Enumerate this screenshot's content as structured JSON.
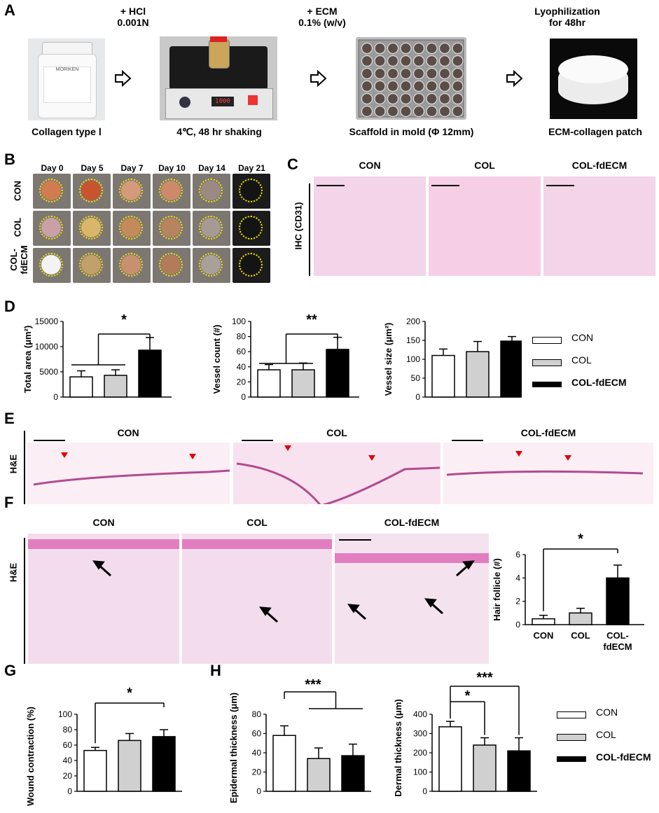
{
  "panels": {
    "A": {
      "letter": "A",
      "steps": [
        {
          "top": "",
          "caption": "Collagen type Ⅰ"
        },
        {
          "top": "+ HCl\n0.001N",
          "caption": "4℃, 48 hr shaking"
        },
        {
          "top": "+ ECM\n0.1% (w/v)",
          "caption": "Scaffold in mold (Φ 12mm)"
        },
        {
          "top": "Lyophilization\nfor 48hr",
          "caption": "ECM-collagen patch"
        }
      ],
      "step_tops": [
        "+ HCl",
        "0.001N",
        "+ ECM",
        "0.1% (w/v)",
        "Lyophilization",
        "for 48hr"
      ],
      "bottle_label": "MORIKEN",
      "stirrer_display": "1000"
    },
    "B": {
      "letter": "B",
      "days": [
        "Day 0",
        "Day 5",
        "Day 7",
        "Day 10",
        "Day 14",
        "Day 21"
      ],
      "rows": [
        "CON",
        "COL",
        "COL-\nfdECM"
      ],
      "row_con": "CON",
      "row_col": "COL",
      "row_fd1": "COL-",
      "row_fd2": "fdECM"
    },
    "C": {
      "letter": "C",
      "side_label": "IHC (CD31)",
      "columns": [
        "CON",
        "COL",
        "COL-fdECM"
      ]
    },
    "D": {
      "letter": "D"
    },
    "E": {
      "letter": "E",
      "side_label": "H&E",
      "columns": [
        "CON",
        "COL",
        "COL-fdECM"
      ]
    },
    "F": {
      "letter": "F",
      "side_label": "H&E",
      "columns": [
        "CON",
        "COL",
        "COL-fdECM"
      ]
    },
    "G": {
      "letter": "G"
    },
    "H": {
      "letter": "H"
    }
  },
  "legend": {
    "items": [
      "CON",
      "COL",
      "COL-fdECM"
    ],
    "colors": [
      "#ffffff",
      "#d0d0d0",
      "#000000"
    ]
  },
  "chart_data": [
    {
      "id": "D-total-area",
      "type": "bar",
      "categories": [
        "CON",
        "COL",
        "COL-fdECM"
      ],
      "values": [
        4000,
        4300,
        9300
      ],
      "errors": [
        1200,
        1100,
        2500
      ],
      "ylabel": "Total area (μm²)",
      "ylim": [
        0,
        15000
      ],
      "yticks": [
        "0",
        "5000",
        "10000",
        "15000"
      ],
      "significance": "*",
      "colors": [
        "#ffffff",
        "#d0d0d0",
        "#000000"
      ]
    },
    {
      "id": "D-vessel-count",
      "type": "bar",
      "categories": [
        "CON",
        "COL",
        "COL-fdECM"
      ],
      "values": [
        36,
        36,
        63
      ],
      "errors": [
        7,
        9,
        16
      ],
      "ylabel": "Vessel count (#)",
      "ylim": [
        0,
        100
      ],
      "yticks": [
        "0",
        "20",
        "40",
        "60",
        "80",
        "100"
      ],
      "significance": "**",
      "colors": [
        "#ffffff",
        "#d0d0d0",
        "#000000"
      ]
    },
    {
      "id": "D-vessel-size",
      "type": "bar",
      "categories": [
        "CON",
        "COL",
        "COL-fdECM"
      ],
      "values": [
        110,
        120,
        148
      ],
      "errors": [
        17,
        27,
        12
      ],
      "ylabel": "Vessel size (μm²)",
      "ylim": [
        0,
        200
      ],
      "yticks": [
        "0",
        "50",
        "100",
        "150",
        "200"
      ],
      "significance": "",
      "colors": [
        "#ffffff",
        "#d0d0d0",
        "#000000"
      ]
    },
    {
      "id": "F-hair-follicle",
      "type": "bar",
      "categories": [
        "CON",
        "COL",
        "COL-\nfdECM"
      ],
      "xticks": [
        "CON",
        "COL",
        "COL-",
        "fdECM"
      ],
      "values": [
        0.5,
        1.0,
        4.0
      ],
      "errors": [
        0.3,
        0.4,
        1.1
      ],
      "ylabel": "Hair follicle (#)",
      "ylim": [
        0,
        6
      ],
      "yticks": [
        "0",
        "2",
        "4",
        "6"
      ],
      "significance": "*",
      "colors": [
        "#ffffff",
        "#d0d0d0",
        "#000000"
      ]
    },
    {
      "id": "G-wound-contraction",
      "type": "bar",
      "categories": [
        "CON",
        "COL",
        "COL-fdECM"
      ],
      "values": [
        53,
        66,
        71
      ],
      "errors": [
        4,
        9,
        9
      ],
      "ylabel": "Wound contraction (%)",
      "ylim": [
        0,
        100
      ],
      "yticks": [
        "0",
        "20",
        "40",
        "60",
        "80",
        "100"
      ],
      "significance": "*",
      "colors": [
        "#ffffff",
        "#d0d0d0",
        "#000000"
      ]
    },
    {
      "id": "H-epidermal",
      "type": "bar",
      "categories": [
        "CON",
        "COL",
        "COL-fdECM"
      ],
      "values": [
        58,
        34,
        37
      ],
      "errors": [
        10,
        11,
        12
      ],
      "ylabel": "Epidermal thickness (μm)",
      "ylim": [
        0,
        80
      ],
      "yticks": [
        "0",
        "20",
        "40",
        "60",
        "80"
      ],
      "significance": "***",
      "colors": [
        "#ffffff",
        "#d0d0d0",
        "#000000"
      ]
    },
    {
      "id": "H-dermal",
      "type": "bar",
      "categories": [
        "CON",
        "COL",
        "COL-fdECM"
      ],
      "values": [
        335,
        240,
        210
      ],
      "errors": [
        28,
        38,
        68
      ],
      "ylabel": "Dermal thickness (μm)",
      "ylim": [
        0,
        400
      ],
      "yticks": [
        "0",
        "100",
        "200",
        "300",
        "400"
      ],
      "significance": [
        "*",
        "***"
      ],
      "sig1": "*",
      "sig2": "***",
      "colors": [
        "#ffffff",
        "#d0d0d0",
        "#000000"
      ]
    }
  ]
}
